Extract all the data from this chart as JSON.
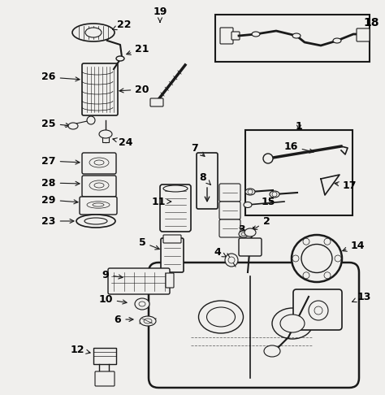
{
  "bg_color": "#f0efed",
  "line_color": "#1a1a1a",
  "text_color": "#000000",
  "fig_width": 4.74,
  "fig_height": 4.86,
  "dpi": 100
}
